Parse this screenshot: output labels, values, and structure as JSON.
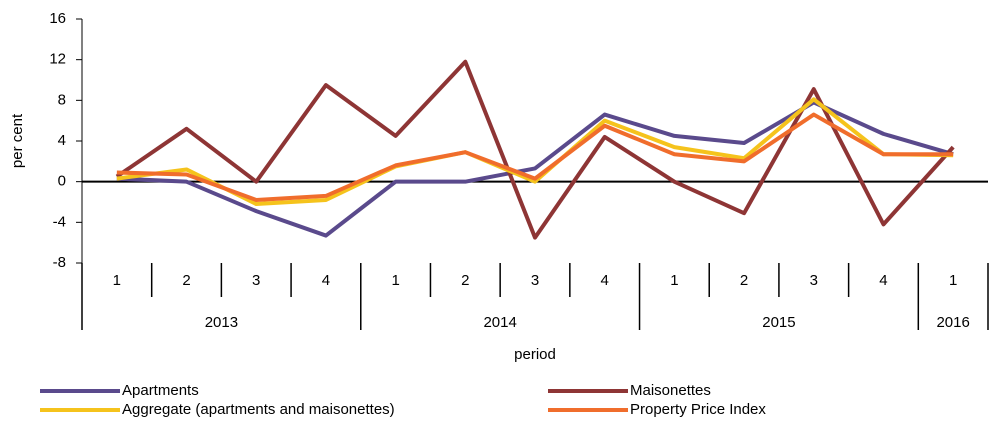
{
  "chart_data": {
    "type": "line",
    "y_label": "per cent",
    "x_label": "period",
    "categories": [
      "1",
      "2",
      "3",
      "4",
      "1",
      "2",
      "3",
      "4",
      "1",
      "2",
      "3",
      "4",
      "1"
    ],
    "years": [
      "2013",
      null,
      null,
      null,
      "2014",
      null,
      null,
      null,
      "2015",
      null,
      null,
      null,
      "2016"
    ],
    "series": [
      {
        "name": "Apartments",
        "color": "#5a4a8c",
        "values": [
          0.3,
          0,
          -2.9,
          -5.3,
          0,
          0,
          1.3,
          6.6,
          4.5,
          3.8,
          7.8,
          4.7,
          2.7
        ]
      },
      {
        "name": "Maisonettes",
        "color": "#8e3535",
        "values": [
          0.5,
          5.2,
          0,
          9.5,
          4.5,
          11.8,
          -5.5,
          4.4,
          0,
          -3.1,
          9.1,
          -4.2,
          3.4
        ]
      },
      {
        "name": "Aggregate (apartments and maisonettes)",
        "color": "#f5c31c",
        "values": [
          0.3,
          1.2,
          -2.2,
          -1.8,
          1.5,
          2.9,
          0,
          6.0,
          3.4,
          2.3,
          8.1,
          2.7,
          2.6
        ]
      },
      {
        "name": "Property Price Index",
        "color": "#f06d2c",
        "values": [
          0.9,
          0.7,
          -1.8,
          -1.4,
          1.6,
          2.9,
          0.3,
          5.5,
          2.7,
          2.0,
          6.6,
          2.7,
          2.7
        ]
      }
    ],
    "ylim": [
      -8,
      16
    ],
    "yticks": [
      -8,
      -4,
      0,
      4,
      8,
      12,
      16
    ],
    "legend": "bottom"
  }
}
